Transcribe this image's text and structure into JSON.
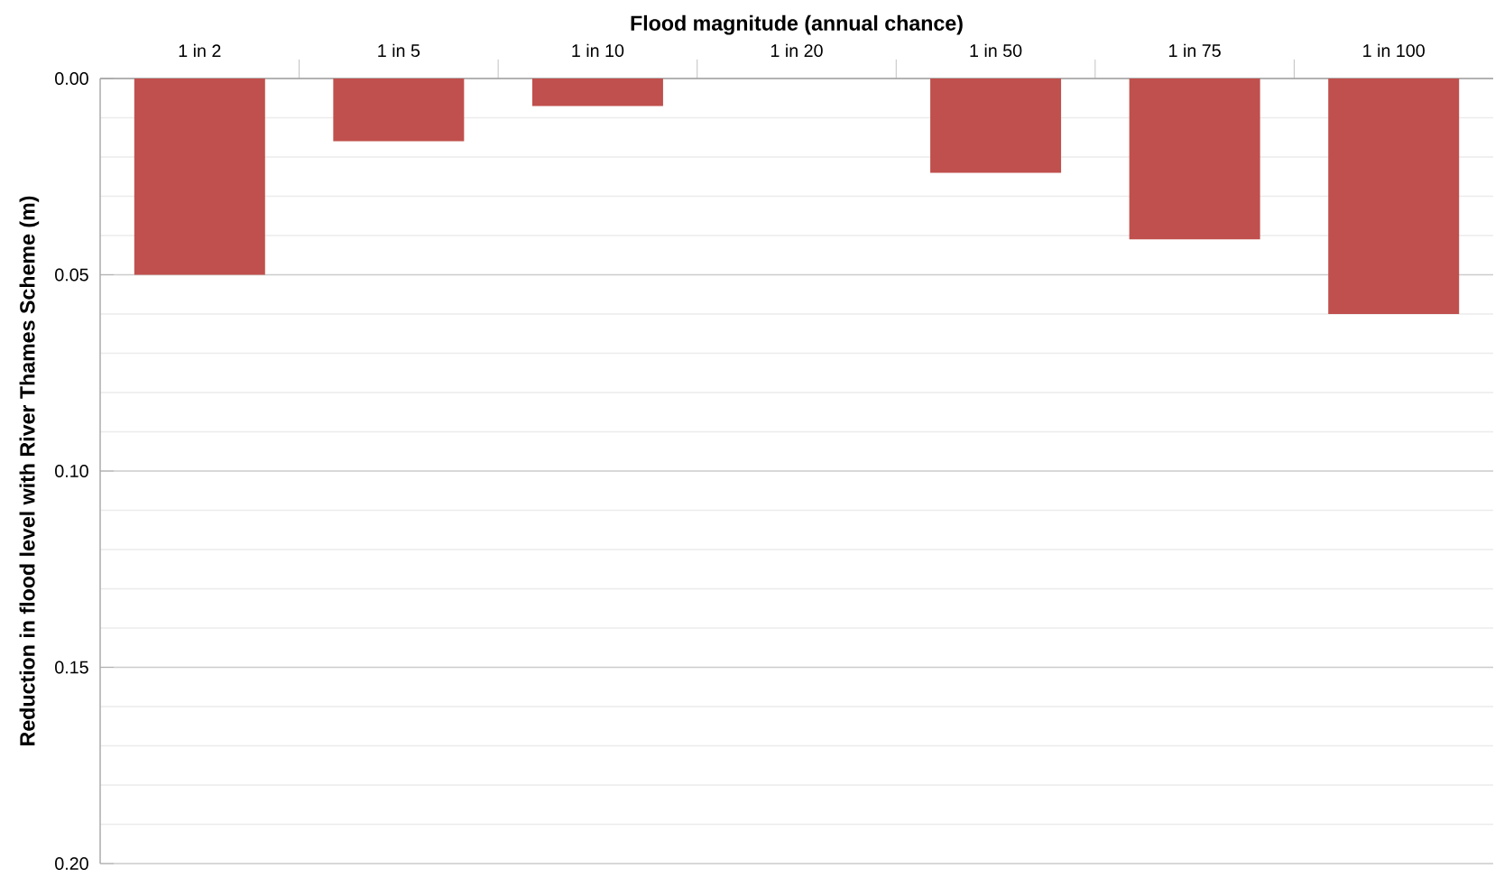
{
  "chart_data": {
    "type": "bar",
    "xlabel": "Flood magnitude (annual chance)",
    "ylabel": "Reduction in flood level with River Thames Scheme (m)",
    "categories": [
      "1 in 2",
      "1 in 5",
      "1 in 10",
      "1 in 20",
      "1 in 50",
      "1 in 75",
      "1 in 100"
    ],
    "values": [
      0.05,
      0.016,
      0.007,
      0,
      0.024,
      0.041,
      0.06
    ],
    "color": "#c0504d",
    "ylim": [
      0.2,
      0
    ],
    "yticks": [
      {
        "value": 0,
        "label": "0.00"
      },
      {
        "value": 0.05,
        "label": "0.05"
      },
      {
        "value": 0.1,
        "label": "0.10"
      },
      {
        "value": 0.15,
        "label": "0.15"
      },
      {
        "value": 0.2,
        "label": "0.20"
      }
    ],
    "grid": true
  }
}
